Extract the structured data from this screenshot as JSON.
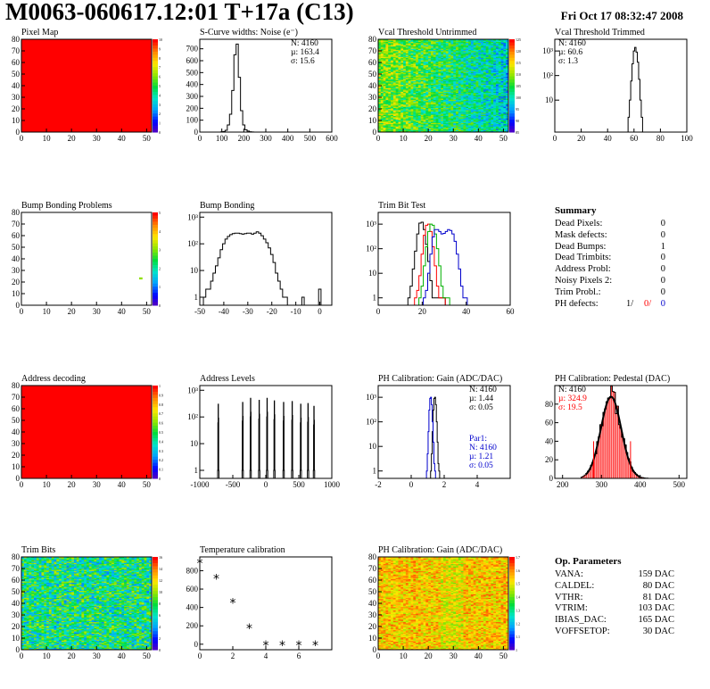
{
  "header": {
    "title": "M0063-060617.12:01 T+17a (C13)",
    "datestamp": "Fri Oct 17 08:32:47 2008"
  },
  "colors": {
    "red": "#ff0000",
    "blue": "#0000cc",
    "green": "#00b000",
    "axis": "#000000"
  },
  "summary": {
    "title": "Summary",
    "rows": [
      {
        "label": "Dead Pixels:",
        "value": "0"
      },
      {
        "label": "Mask defects:",
        "value": "0"
      },
      {
        "label": "Dead Bumps:",
        "value": "1"
      },
      {
        "label": "Dead Trimbits:",
        "value": "0"
      },
      {
        "label": "Address Probl:",
        "value": "0"
      },
      {
        "label": "Noisy Pixels 2:",
        "value": "0"
      },
      {
        "label": "Trim Probl.:",
        "value": "0"
      }
    ],
    "ph_label": "PH defects:",
    "ph_values": [
      "1/",
      "0/",
      "0"
    ]
  },
  "op_params": {
    "title": "Op. Parameters",
    "rows": [
      {
        "label": "VANA:",
        "value": "159 DAC"
      },
      {
        "label": "CALDEL:",
        "value": "80 DAC"
      },
      {
        "label": "VTHR:",
        "value": "81 DAC"
      },
      {
        "label": "VTRIM:",
        "value": "103 DAC"
      },
      {
        "label": "IBIAS_DAC:",
        "value": "165 DAC"
      },
      {
        "label": "VOFFSETOP:",
        "value": "30 DAC"
      }
    ]
  },
  "chart_data": [
    {
      "id": "pixel_map",
      "type": "heatmap",
      "title": "Pixel Map",
      "xlim": [
        0,
        52
      ],
      "ylim": [
        0,
        80
      ],
      "xticks": [
        0,
        10,
        20,
        30,
        40,
        50
      ],
      "yticks": [
        0,
        10,
        20,
        30,
        40,
        50,
        60,
        70,
        80
      ],
      "zlim": [
        0,
        10
      ],
      "zticks": [
        0,
        1,
        2,
        3,
        4,
        5,
        6,
        7,
        8,
        9,
        10
      ],
      "fill": "uniform",
      "fill_value": 10
    },
    {
      "id": "scurve_noise",
      "type": "bar",
      "title": "S-Curve widths: Noise (e⁻)",
      "xlim": [
        0,
        600
      ],
      "ylim": [
        0,
        780
      ],
      "xticks": [
        0,
        100,
        200,
        300,
        400,
        500,
        600
      ],
      "yticks": [
        0,
        100,
        200,
        300,
        400,
        500,
        600,
        700
      ],
      "stats": [
        "N: 4160",
        "µ: 163.4",
        "σ: 15.6"
      ],
      "series": [
        {
          "x": [
            100,
            110,
            120,
            130,
            140,
            150,
            160,
            170,
            180,
            190,
            200,
            210,
            220,
            230,
            240
          ],
          "values": [
            2,
            5,
            15,
            60,
            150,
            350,
            650,
            740,
            460,
            180,
            60,
            20,
            8,
            3,
            1
          ]
        }
      ]
    },
    {
      "id": "vcal_untrimmed",
      "type": "heatmap",
      "title": "Vcal Threshold Untrimmed",
      "xlim": [
        0,
        52
      ],
      "ylim": [
        0,
        80
      ],
      "xticks": [
        0,
        10,
        20,
        30,
        40,
        50
      ],
      "yticks": [
        0,
        10,
        20,
        30,
        40,
        50,
        60,
        70,
        80
      ],
      "zlim": [
        85,
        125
      ],
      "zticks": [
        85,
        90,
        95,
        100,
        105,
        110,
        115,
        120,
        125
      ],
      "fill": "noisy",
      "gradient": "x"
    },
    {
      "id": "vcal_trimmed",
      "type": "bar",
      "title": "Vcal Threshold Trimmed",
      "log": true,
      "xlim": [
        0,
        100
      ],
      "ylim": [
        0.5,
        3000
      ],
      "xticks": [
        0,
        20,
        40,
        60,
        80,
        100
      ],
      "ytick_labels": [
        "10",
        "10²",
        "10³"
      ],
      "ytick_values": [
        10,
        100,
        1000
      ],
      "stats": [
        "N: 4160",
        "µ: 60.6",
        "σ: 1.3"
      ],
      "series": [
        {
          "x": [
            56,
            57,
            58,
            59,
            60,
            61,
            62,
            63,
            64,
            65,
            66
          ],
          "values": [
            2,
            10,
            60,
            300,
            1000,
            1400,
            900,
            350,
            70,
            10,
            2
          ]
        }
      ]
    },
    {
      "id": "bump_problems",
      "type": "heatmap",
      "title": "Bump Bonding Problems",
      "xlim": [
        0,
        52
      ],
      "ylim": [
        0,
        80
      ],
      "xticks": [
        0,
        10,
        20,
        30,
        40,
        50
      ],
      "yticks": [
        0,
        10,
        20,
        30,
        40,
        50,
        60,
        70,
        80
      ],
      "zlim": [
        0,
        5
      ],
      "zticks": [
        0,
        1,
        2,
        3,
        4,
        5
      ],
      "fill": "empty",
      "points": [
        {
          "x": 47,
          "y": 23
        }
      ]
    },
    {
      "id": "bump_bonding",
      "type": "bar",
      "title": "Bump Bonding",
      "log": true,
      "xlim": [
        -50,
        5
      ],
      "ylim": [
        0.5,
        1500
      ],
      "xticks": [
        -50,
        -40,
        -30,
        -20,
        -10,
        0
      ],
      "ytick_labels": [
        "1",
        "10",
        "10²",
        "10³"
      ],
      "ytick_values": [
        1,
        10,
        100,
        1000
      ],
      "series": [
        {
          "x": [
            -48,
            -47,
            -46,
            -45,
            -44,
            -43,
            -42,
            -41,
            -40,
            -39,
            -38,
            -37,
            -36,
            -35,
            -34,
            -33,
            -32,
            -31,
            -30,
            -29,
            -28,
            -27,
            -26,
            -25,
            -24,
            -23,
            -22,
            -21,
            -20,
            -19,
            -18,
            -17,
            -16,
            -15,
            -14,
            -13,
            -12,
            -11,
            -10,
            -9,
            -8,
            -7,
            -6,
            -5,
            -4,
            -3,
            -2,
            -1,
            0
          ],
          "values": [
            1,
            2,
            2,
            4,
            8,
            15,
            30,
            60,
            100,
            150,
            190,
            220,
            240,
            250,
            250,
            240,
            230,
            240,
            250,
            250,
            230,
            250,
            280,
            250,
            200,
            150,
            110,
            70,
            40,
            20,
            8,
            4,
            2,
            1,
            1,
            0,
            0,
            0,
            0,
            0,
            0,
            1,
            0,
            0,
            0,
            0,
            0,
            0,
            2
          ]
        }
      ]
    },
    {
      "id": "trim_bit_test",
      "type": "line",
      "title": "Trim Bit Test",
      "log": true,
      "xlim": [
        0,
        60
      ],
      "ylim": [
        0.5,
        3000
      ],
      "xticks": [
        0,
        20,
        40,
        60
      ],
      "ytick_labels": [
        "1",
        "10",
        "10²",
        "10³"
      ],
      "ytick_values": [
        1,
        10,
        100,
        1000
      ],
      "series": [
        {
          "color": "#000000",
          "x": [
            14,
            15,
            16,
            17,
            18,
            19,
            20,
            21,
            22,
            23,
            24,
            25,
            26,
            27,
            28,
            29,
            30
          ],
          "values": [
            1,
            3,
            15,
            80,
            400,
            1100,
            1200,
            600,
            150,
            30,
            5,
            1,
            1,
            1,
            1,
            1,
            1
          ]
        },
        {
          "color": "#ff0000",
          "x": [
            17,
            18,
            19,
            20,
            21,
            22,
            23,
            24,
            25,
            26,
            27,
            28,
            29,
            30
          ],
          "values": [
            1,
            2,
            8,
            60,
            350,
            900,
            1000,
            500,
            120,
            20,
            3,
            1,
            1,
            1
          ]
        },
        {
          "color": "#00b000",
          "x": [
            19,
            20,
            21,
            22,
            23,
            24,
            25,
            26,
            27,
            28,
            29,
            30,
            31,
            32
          ],
          "values": [
            1,
            3,
            20,
            120,
            500,
            1000,
            900,
            400,
            100,
            20,
            3,
            1,
            1,
            1
          ]
        },
        {
          "color": "#0000cc",
          "x": [
            21,
            22,
            23,
            24,
            25,
            26,
            27,
            28,
            29,
            30,
            31,
            32,
            33,
            34,
            35,
            36,
            37,
            38,
            39,
            40
          ],
          "values": [
            1,
            2,
            10,
            60,
            300,
            600,
            600,
            500,
            400,
            420,
            500,
            600,
            550,
            400,
            200,
            60,
            15,
            3,
            1,
            1
          ]
        }
      ]
    },
    {
      "id": "address_decoding",
      "type": "heatmap",
      "title": "Address decoding",
      "xlim": [
        0,
        52
      ],
      "ylim": [
        0,
        80
      ],
      "xticks": [
        0,
        10,
        20,
        30,
        40,
        50
      ],
      "yticks": [
        0,
        10,
        20,
        30,
        40,
        50,
        60,
        70,
        80
      ],
      "zlim": [
        0,
        1
      ],
      "zticks": [
        0,
        0.1,
        0.2,
        0.3,
        0.4,
        0.5,
        0.6,
        0.7,
        0.8,
        0.9,
        1
      ],
      "fill": "uniform",
      "fill_value": 1
    },
    {
      "id": "address_levels",
      "type": "bar",
      "title": "Address Levels",
      "log": true,
      "xlim": [
        -1000,
        1000
      ],
      "ylim": [
        0.5,
        1500
      ],
      "xticks": [
        -1000,
        -500,
        0,
        500,
        1000
      ],
      "ytick_labels": [
        "1",
        "10",
        "10²",
        "10³"
      ],
      "ytick_values": [
        1,
        10,
        100,
        1000
      ],
      "peaks": [
        -720,
        -350,
        -230,
        -100,
        20,
        130,
        270,
        400,
        530,
        640,
        730
      ],
      "peak_heights": [
        300,
        350,
        500,
        420,
        500,
        400,
        350,
        380,
        300,
        320,
        250
      ]
    },
    {
      "id": "ph_gain",
      "type": "bar",
      "title": "PH Calibration: Gain (ADC/DAC)",
      "log": true,
      "xlim": [
        -2,
        6
      ],
      "ylim": [
        0.5,
        3000
      ],
      "xticks": [
        -2,
        0,
        2,
        4
      ],
      "ytick_labels": [
        "1",
        "10",
        "10²",
        "10³"
      ],
      "ytick_values": [
        1,
        10,
        100,
        1000
      ],
      "stats": [
        "N: 4160",
        "µ: 1.44",
        "σ: 0.05"
      ],
      "fit_stats": [
        "Par1:",
        "N: 4160",
        "µ: 1.21",
        "σ: 0.05"
      ],
      "series": [
        {
          "color": "#000000",
          "x": [
            1.2,
            1.25,
            1.3,
            1.35,
            1.4,
            1.45,
            1.5,
            1.55,
            1.6,
            1.65,
            1.7
          ],
          "values": [
            1,
            5,
            40,
            300,
            900,
            1000,
            500,
            100,
            15,
            2,
            1
          ]
        },
        {
          "color": "#0000cc",
          "x": [
            0.95,
            1.0,
            1.05,
            1.1,
            1.15,
            1.2,
            1.25,
            1.3,
            1.35,
            1.4,
            1.45
          ],
          "values": [
            1,
            5,
            40,
            300,
            900,
            1000,
            500,
            100,
            15,
            2,
            1
          ]
        }
      ]
    },
    {
      "id": "ph_pedestal",
      "type": "bar",
      "title": "PH Calibration: Pedestal (DAC)",
      "xlim": [
        180,
        520
      ],
      "ylim": [
        0,
        100
      ],
      "xticks": [
        200,
        300,
        400,
        500
      ],
      "yticks": [
        0,
        20,
        40,
        60,
        80
      ],
      "stats": [
        "N: 4160",
        "µ: 324.9",
        "σ: 19.5"
      ],
      "mean": 324.9,
      "sigma": 19.5,
      "cut_low": 280,
      "cut_high": 375
    },
    {
      "id": "trim_bits",
      "type": "heatmap",
      "title": "Trim Bits",
      "xlim": [
        0,
        52
      ],
      "ylim": [
        0,
        80
      ],
      "xticks": [
        0,
        10,
        20,
        30,
        40,
        50
      ],
      "yticks": [
        0,
        10,
        20,
        30,
        40,
        50,
        60,
        70,
        80
      ],
      "zlim": [
        0,
        16
      ],
      "zticks": [
        0,
        2,
        4,
        6,
        8,
        10,
        12,
        14,
        16
      ],
      "fill": "noisy",
      "gradient": "none"
    },
    {
      "id": "temperature_calibration",
      "type": "scatter",
      "title": "Temperature calibration",
      "xlim": [
        0,
        8
      ],
      "ylim": [
        -60,
        950
      ],
      "xticks": [
        0,
        2,
        4,
        6
      ],
      "yticks": [
        0,
        200,
        400,
        600,
        800
      ],
      "points": [
        {
          "x": 0,
          "y": 880
        },
        {
          "x": 1,
          "y": 710
        },
        {
          "x": 2,
          "y": 450
        },
        {
          "x": 3,
          "y": 175
        },
        {
          "x": 4,
          "y": -10
        },
        {
          "x": 5,
          "y": -10
        },
        {
          "x": 6,
          "y": -10
        },
        {
          "x": 7,
          "y": -10
        }
      ]
    },
    {
      "id": "ph_gain_map",
      "type": "heatmap",
      "title": "PH Calibration: Gain (ADC/DAC)",
      "xlim": [
        0,
        52
      ],
      "ylim": [
        0,
        80
      ],
      "xticks": [
        0,
        10,
        20,
        30,
        40,
        50
      ],
      "yticks": [
        0,
        10,
        20,
        30,
        40,
        50,
        60,
        70,
        80
      ],
      "zlim": [
        1.0,
        1.7
      ],
      "zticks": [
        1,
        1.1,
        1.2,
        1.3,
        1.4,
        1.5,
        1.6,
        1.7
      ],
      "fill": "noisy",
      "gradient": "hot"
    }
  ]
}
